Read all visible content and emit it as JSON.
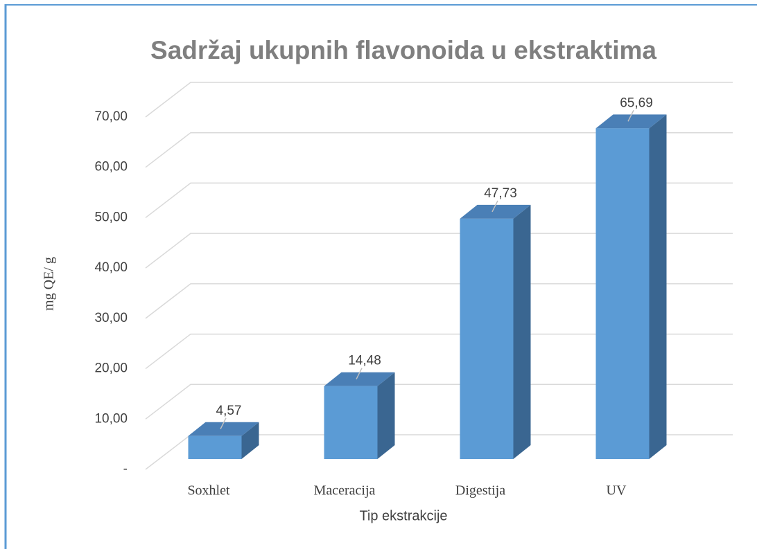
{
  "chart_data": {
    "type": "bar3d",
    "title": "Sadržaj ukupnih flavonoida u ekstraktima",
    "x_label": "Tip ekstrakcije",
    "y_label": "mg QE/ g",
    "categories": [
      "Soxhlet",
      "Maceracija",
      "Digestija",
      "UV"
    ],
    "values": [
      4.57,
      14.48,
      47.73,
      65.69
    ],
    "value_labels": [
      "4,57",
      "14,48",
      "47,73",
      "65,69"
    ],
    "color": "#5b9bd5",
    "ylim": [
      0,
      70
    ],
    "yticks": [
      {
        "value": 0,
        "label": "-"
      },
      {
        "value": 10,
        "label": "10,00"
      },
      {
        "value": 20,
        "label": "20,00"
      },
      {
        "value": 30,
        "label": "30,00"
      },
      {
        "value": 40,
        "label": "40,00"
      },
      {
        "value": 50,
        "label": "50,00"
      },
      {
        "value": 60,
        "label": "60,00"
      },
      {
        "value": 70,
        "label": "70,00"
      }
    ],
    "grid": true
  }
}
